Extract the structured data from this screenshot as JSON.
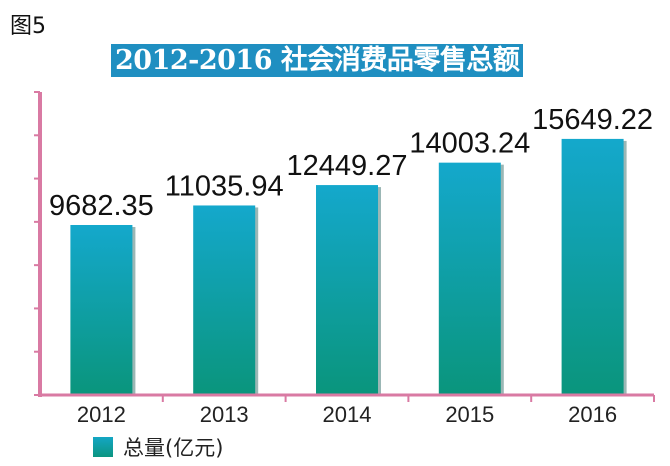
{
  "figure_label": "图5",
  "chart_data": {
    "type": "bar",
    "title": "2012-2016 社会消费品零售总额",
    "categories": [
      "2012",
      "2013",
      "2014",
      "2015",
      "2016"
    ],
    "series": [
      {
        "name": "总量(亿元)",
        "values": [
          9682.35,
          11035.94,
          12449.27,
          14003.24,
          15649.22
        ]
      }
    ],
    "data_labels": [
      "9682.35",
      "11035.94",
      "12449.27",
      "14003.24",
      "15649.22"
    ],
    "xlabel": "",
    "ylabel": "",
    "ylim": [
      -2100,
      18900
    ],
    "grid": false,
    "legend_position": "bottom-left",
    "colors": {
      "bar_top": "#14a8cc",
      "bar_bottom": "#0a957c",
      "axis": "#d97aa3",
      "title_bg": "#1f8fc1"
    }
  }
}
